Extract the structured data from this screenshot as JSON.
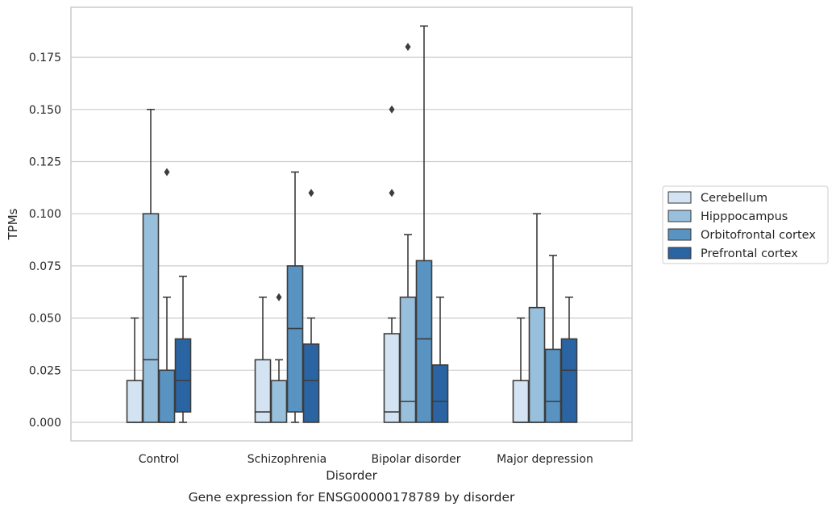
{
  "caption": "Gene expression for ENSG00000178789 by disorder",
  "chart_data": {
    "type": "box",
    "title": "",
    "xlabel": "Disorder",
    "ylabel": "TPMs",
    "ylim": [
      -0.009,
      0.199
    ],
    "yticks": [
      0.0,
      0.025,
      0.05,
      0.075,
      0.1,
      0.125,
      0.15,
      0.175
    ],
    "ytick_labels": [
      "0.000",
      "0.025",
      "0.050",
      "0.075",
      "0.100",
      "0.125",
      "0.150",
      "0.175"
    ],
    "grid": "horizontal",
    "legend_position": "right",
    "categories": [
      "Control",
      "Schizophrenia",
      "Bipolar disorder",
      "Major depression"
    ],
    "series": [
      {
        "name": "Cerebellum",
        "color": "#d3e3f1",
        "boxes": [
          {
            "min": 0.0,
            "q1": 0.0,
            "median": 0.0,
            "q3": 0.02,
            "max": 0.05,
            "outliers": []
          },
          {
            "min": 0.0,
            "q1": 0.0,
            "median": 0.005,
            "q3": 0.03,
            "max": 0.06,
            "outliers": []
          },
          {
            "min": 0.0,
            "q1": 0.0,
            "median": 0.005,
            "q3": 0.0425,
            "max": 0.05,
            "outliers": [
              0.11,
              0.15
            ]
          },
          {
            "min": 0.0,
            "q1": 0.0,
            "median": 0.0,
            "q3": 0.02,
            "max": 0.05,
            "outliers": []
          }
        ]
      },
      {
        "name": "Hipppocampus",
        "color": "#98bfdb",
        "boxes": [
          {
            "min": 0.0,
            "q1": 0.0,
            "median": 0.03,
            "q3": 0.1,
            "max": 0.15,
            "outliers": []
          },
          {
            "min": 0.0,
            "q1": 0.0,
            "median": 0.02,
            "q3": 0.02,
            "max": 0.03,
            "outliers": [
              0.06
            ]
          },
          {
            "min": 0.0,
            "q1": 0.0,
            "median": 0.01,
            "q3": 0.06,
            "max": 0.09,
            "outliers": [
              0.18
            ]
          },
          {
            "min": 0.0,
            "q1": 0.0,
            "median": 0.0,
            "q3": 0.055,
            "max": 0.1,
            "outliers": []
          }
        ]
      },
      {
        "name": "Orbitofrontal cortex",
        "color": "#5893c2",
        "boxes": [
          {
            "min": 0.0,
            "q1": 0.0,
            "median": 0.0,
            "q3": 0.025,
            "max": 0.06,
            "outliers": [
              0.12
            ]
          },
          {
            "min": 0.0,
            "q1": 0.005,
            "median": 0.045,
            "q3": 0.075,
            "max": 0.12,
            "outliers": []
          },
          {
            "min": 0.0,
            "q1": 0.0,
            "median": 0.04,
            "q3": 0.0775,
            "max": 0.19,
            "outliers": []
          },
          {
            "min": 0.0,
            "q1": 0.0,
            "median": 0.01,
            "q3": 0.035,
            "max": 0.08,
            "outliers": []
          }
        ]
      },
      {
        "name": "Prefrontal cortex",
        "color": "#2b64a2",
        "boxes": [
          {
            "min": 0.0,
            "q1": 0.005,
            "median": 0.02,
            "q3": 0.04,
            "max": 0.07,
            "outliers": []
          },
          {
            "min": 0.0,
            "q1": 0.0,
            "median": 0.02,
            "q3": 0.0375,
            "max": 0.05,
            "outliers": [
              0.11
            ]
          },
          {
            "min": 0.0,
            "q1": 0.0,
            "median": 0.01,
            "q3": 0.0275,
            "max": 0.06,
            "outliers": []
          },
          {
            "min": 0.0,
            "q1": 0.0,
            "median": 0.025,
            "q3": 0.04,
            "max": 0.06,
            "outliers": []
          }
        ]
      }
    ]
  }
}
